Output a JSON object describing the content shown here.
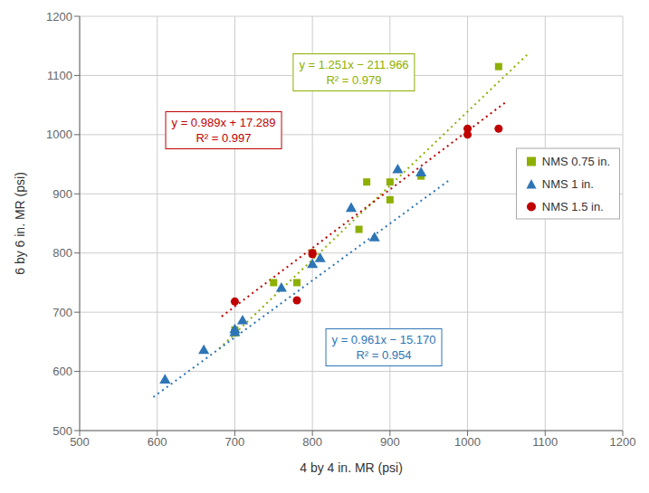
{
  "chart_data": {
    "type": "scatter",
    "xlabel": "4 by 4 in. MR (psi)",
    "ylabel": "6 by 6 in. MR (psi)",
    "xlim": [
      500,
      1200
    ],
    "ylim": [
      500,
      1200
    ],
    "xticks": [
      500,
      600,
      700,
      800,
      900,
      1000,
      1100,
      1200
    ],
    "yticks": [
      500,
      600,
      700,
      800,
      900,
      1000,
      1100,
      1200
    ],
    "grid": true,
    "legend": "right",
    "series": [
      {
        "name": "NMS 0.75 in.",
        "color": "#8db000",
        "marker": "square",
        "x": [
          700,
          700,
          750,
          780,
          800,
          800,
          860,
          870,
          900,
          900,
          940,
          1040
        ],
        "y": [
          665,
          670,
          750,
          750,
          800,
          800,
          840,
          920,
          890,
          920,
          930,
          1115
        ],
        "trendline": {
          "x": [
            680,
            1080
          ],
          "y": [
            638.714,
            1139.114
          ],
          "line_style": "dotted"
        }
      },
      {
        "name": "NMS 1 in.",
        "color": "#2e75b6",
        "marker": "triangle",
        "x": [
          610,
          660,
          700,
          700,
          710,
          760,
          800,
          810,
          850,
          880,
          910,
          940
        ],
        "y": [
          585,
          635,
          665,
          670,
          685,
          740,
          780,
          790,
          875,
          825,
          940,
          935
        ],
        "trendline": {
          "x": [
            595,
            975
          ],
          "y": [
            556.625,
            921.805
          ],
          "line_style": "dotted"
        }
      },
      {
        "name": "NMS 1.5 in.",
        "color": "#c00000",
        "marker": "circle",
        "x": [
          700,
          780,
          800,
          800,
          1000,
          1000,
          1040
        ],
        "y": [
          718,
          720,
          798,
          800,
          1000,
          1010,
          1010
        ],
        "trendline": {
          "x": [
            683,
            1050
          ],
          "y": [
            692.776,
            1055.739
          ],
          "line_style": "dotted"
        }
      }
    ],
    "annotations": [
      {
        "text": "y = 1.251x − 211.966\nR² = 0.979",
        "color": "#8db000"
      },
      {
        "text": "y = 0.989x + 17.289\nR² = 0.997",
        "color": "#c00000"
      },
      {
        "text": "y = 0.961x − 15.170\nR² = 0.954",
        "color": "#2e75b6"
      }
    ]
  }
}
